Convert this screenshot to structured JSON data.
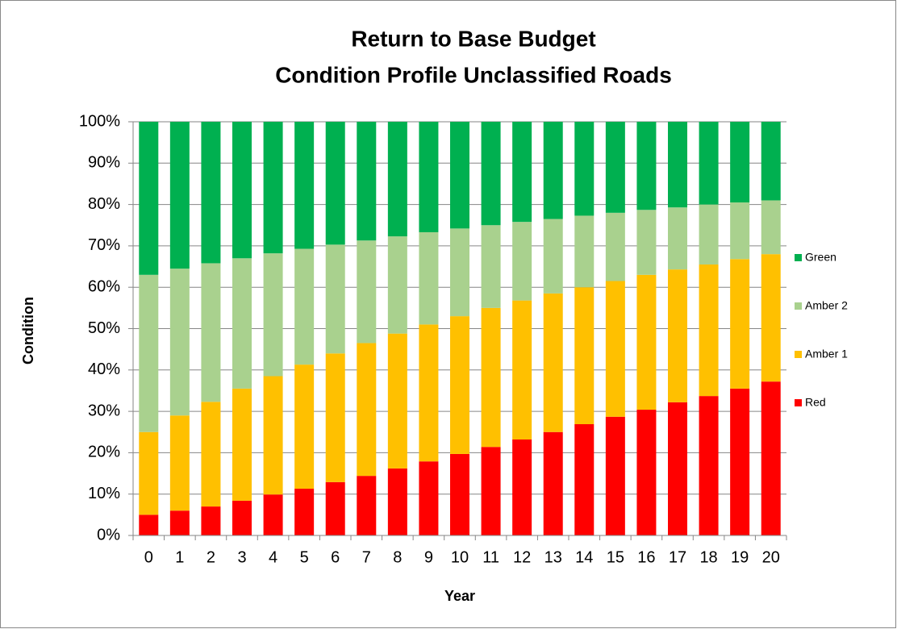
{
  "chart_data": {
    "type": "stacked_bar",
    "title": [
      "Return to Base Budget",
      "Condition Profile Unclassified Roads"
    ],
    "xlabel": "Year",
    "ylabel": "Condition",
    "categories": [
      "0",
      "1",
      "2",
      "3",
      "4",
      "5",
      "6",
      "7",
      "8",
      "9",
      "10",
      "11",
      "12",
      "13",
      "14",
      "15",
      "16",
      "17",
      "18",
      "19",
      "20"
    ],
    "series": [
      {
        "name": "Red",
        "color": "#ff0000",
        "values": [
          5,
          6,
          7,
          8.4,
          9.9,
          11.3,
          12.9,
          14.4,
          16.2,
          17.9,
          19.7,
          21.4,
          23.2,
          25,
          26.9,
          28.7,
          30.4,
          32.2,
          33.7,
          35.5,
          37.2
        ]
      },
      {
        "name": "Amber 1",
        "color": "#ffc000",
        "values": [
          20,
          23,
          25.3,
          27.1,
          28.6,
          30,
          31.1,
          32.1,
          32.6,
          33.1,
          33.3,
          33.6,
          33.6,
          33.5,
          33.1,
          32.8,
          32.6,
          32.1,
          31.8,
          31.3,
          30.8
        ]
      },
      {
        "name": "Amber 2",
        "color": "#a9d18e",
        "values": [
          38,
          35.5,
          33.5,
          31.5,
          29.7,
          28,
          26.3,
          24.8,
          23.5,
          22.3,
          21.2,
          20,
          19,
          18,
          17.3,
          16.5,
          15.7,
          15,
          14.5,
          13.7,
          13
        ]
      },
      {
        "name": "Green",
        "color": "#00b050",
        "values": [
          37,
          35.5,
          34.2,
          33,
          31.8,
          30.7,
          29.7,
          28.7,
          27.7,
          26.7,
          25.8,
          25,
          24.2,
          23.5,
          22.7,
          22,
          21.3,
          20.7,
          20,
          19.5,
          19
        ]
      }
    ],
    "ylim": [
      0,
      100
    ],
    "yticks": [
      {
        "value": 0,
        "label": "0%"
      },
      {
        "value": 10,
        "label": "10%"
      },
      {
        "value": 20,
        "label": "20%"
      },
      {
        "value": 30,
        "label": "30%"
      },
      {
        "value": 40,
        "label": "40%"
      },
      {
        "value": 50,
        "label": "50%"
      },
      {
        "value": 60,
        "label": "60%"
      },
      {
        "value": 70,
        "label": "70%"
      },
      {
        "value": 80,
        "label": "80%"
      },
      {
        "value": 90,
        "label": "90%"
      },
      {
        "value": 100,
        "label": "100%"
      }
    ],
    "grid": true,
    "legend": "right"
  }
}
